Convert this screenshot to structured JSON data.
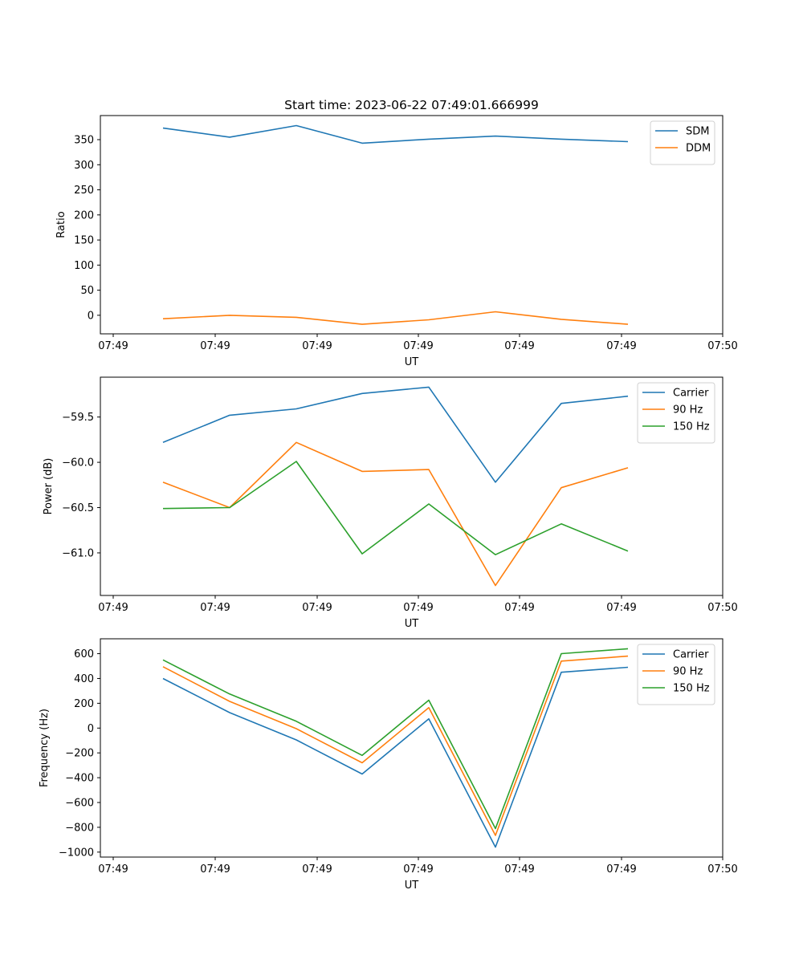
{
  "figure": {
    "title": "Start time: 2023-06-22 07:49:01.666999"
  },
  "colors": {
    "blue": "#1f77b4",
    "orange": "#ff7f0e",
    "green": "#2ca02c"
  },
  "chart_data": [
    {
      "type": "line",
      "title": "Start time: 2023-06-22 07:49:01.666999",
      "xlabel": "UT",
      "ylabel": "Ratio",
      "x_tick_labels": [
        "07:49",
        "07:49",
        "07:49",
        "07:49",
        "07:49",
        "07:49",
        "07:50"
      ],
      "y_ticks": [
        0,
        50,
        100,
        150,
        200,
        250,
        300,
        350
      ],
      "y_tick_labels": [
        "0",
        "50",
        "100",
        "150",
        "200",
        "250",
        "300",
        "350"
      ],
      "ylim": [
        -37,
        398
      ],
      "grid": false,
      "legend_position": "upper right",
      "series": [
        {
          "name": "SDM",
          "color": "#1f77b4",
          "values": [
            373,
            355,
            378,
            343,
            351,
            357,
            351,
            346
          ]
        },
        {
          "name": "DDM",
          "color": "#ff7f0e",
          "values": [
            -7,
            0,
            -4,
            -18,
            -9,
            7,
            -8,
            -18
          ]
        }
      ]
    },
    {
      "type": "line",
      "title": "",
      "xlabel": "UT",
      "ylabel": "Power (dB)",
      "x_tick_labels": [
        "07:49",
        "07:49",
        "07:49",
        "07:49",
        "07:49",
        "07:49",
        "07:50"
      ],
      "y_ticks": [
        -61.0,
        -60.5,
        -60.0,
        -59.5
      ],
      "y_tick_labels": [
        "−61.0",
        "−60.5",
        "−60.0",
        "−59.5"
      ],
      "ylim": [
        -61.47,
        -59.06
      ],
      "grid": false,
      "legend_position": "upper right",
      "series": [
        {
          "name": "Carrier",
          "color": "#1f77b4",
          "values": [
            -59.78,
            -59.48,
            -59.41,
            -59.24,
            -59.17,
            -60.22,
            -59.35,
            -59.27
          ]
        },
        {
          "name": "90 Hz",
          "color": "#ff7f0e",
          "values": [
            -60.22,
            -60.5,
            -59.78,
            -60.1,
            -60.08,
            -61.36,
            -60.28,
            -60.06
          ]
        },
        {
          "name": "150 Hz",
          "color": "#2ca02c",
          "values": [
            -60.51,
            -60.5,
            -59.99,
            -61.01,
            -60.46,
            -61.02,
            -60.68,
            -60.98
          ]
        }
      ]
    },
    {
      "type": "line",
      "title": "",
      "xlabel": "UT",
      "ylabel": "Frequency (Hz)",
      "x_tick_labels": [
        "07:49",
        "07:49",
        "07:49",
        "07:49",
        "07:49",
        "07:49",
        "07:50"
      ],
      "y_ticks": [
        -1000,
        -800,
        -600,
        -400,
        -200,
        0,
        200,
        400,
        600
      ],
      "y_tick_labels": [
        "−1000",
        "−800",
        "−600",
        "−400",
        "−200",
        "0",
        "200",
        "400",
        "600"
      ],
      "ylim": [
        -1040,
        720
      ],
      "grid": false,
      "legend_position": "upper right",
      "series": [
        {
          "name": "Carrier",
          "color": "#1f77b4",
          "values": [
            400,
            125,
            -95,
            -370,
            75,
            -960,
            450,
            490
          ]
        },
        {
          "name": "90 Hz",
          "color": "#ff7f0e",
          "values": [
            495,
            215,
            -5,
            -280,
            165,
            -865,
            540,
            580
          ]
        },
        {
          "name": "150 Hz",
          "color": "#2ca02c",
          "values": [
            550,
            275,
            55,
            -220,
            225,
            -810,
            600,
            640
          ]
        }
      ]
    }
  ]
}
